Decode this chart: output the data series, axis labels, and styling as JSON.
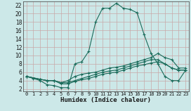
{
  "xlabel": "Humidex (Indice chaleur)",
  "bg_color": "#cce8e8",
  "grid_color": "#b0d0d0",
  "line_color": "#1a6b5a",
  "xlim": [
    -0.5,
    23.5
  ],
  "ylim": [
    1.5,
    23
  ],
  "xticks": [
    0,
    1,
    2,
    3,
    4,
    5,
    6,
    7,
    8,
    9,
    10,
    11,
    12,
    13,
    14,
    15,
    16,
    17,
    18,
    19,
    20,
    21,
    22,
    23
  ],
  "yticks": [
    2,
    4,
    6,
    8,
    10,
    12,
    14,
    16,
    18,
    20,
    22
  ],
  "curve1_x": [
    0,
    1,
    2,
    3,
    4,
    5,
    6,
    7,
    8,
    9,
    10,
    11,
    12,
    13,
    14,
    15,
    16,
    17,
    18,
    19,
    20,
    21,
    22,
    23
  ],
  "curve1_y": [
    5,
    4.5,
    4,
    3,
    2.8,
    2.3,
    2.3,
    8,
    8.5,
    11,
    18,
    21.3,
    21.3,
    22.5,
    21.3,
    21,
    20.2,
    15,
    10.5,
    8,
    5,
    4,
    4,
    6.5
  ],
  "curve2_x": [
    0,
    2,
    3,
    4,
    5,
    6,
    7,
    8,
    9,
    10,
    11,
    12,
    13,
    14,
    15,
    16,
    17,
    18,
    19,
    20,
    21,
    22,
    23
  ],
  "curve2_y": [
    5,
    4.3,
    4,
    4,
    3.5,
    4,
    5,
    5.5,
    5.8,
    6,
    6.5,
    7,
    7.2,
    7.5,
    8,
    8.5,
    9,
    9.5,
    10.5,
    9.5,
    9,
    7,
    7
  ],
  "curve3_x": [
    0,
    2,
    3,
    4,
    5,
    6,
    7,
    8,
    9,
    10,
    11,
    12,
    13,
    14,
    15,
    16,
    17,
    18,
    19,
    20,
    21,
    22,
    23
  ],
  "curve3_y": [
    5,
    4.3,
    4,
    4,
    3.5,
    3.5,
    4,
    4.5,
    5,
    5.5,
    6,
    6.3,
    6.5,
    7,
    7.5,
    8,
    8.5,
    9,
    9,
    8,
    7,
    6.5,
    6.5
  ],
  "curve4_x": [
    0,
    2,
    3,
    4,
    5,
    6,
    7,
    8,
    9,
    10,
    11,
    12,
    13,
    14,
    15,
    16,
    17,
    18,
    19,
    20,
    21,
    22,
    23
  ],
  "curve4_y": [
    5,
    4.3,
    4,
    4,
    3.2,
    3.2,
    3.8,
    4.2,
    4.5,
    5,
    5.5,
    5.8,
    6,
    6.5,
    7,
    7.5,
    7.8,
    8.2,
    8.5,
    8,
    7,
    6.5,
    6.5
  ]
}
